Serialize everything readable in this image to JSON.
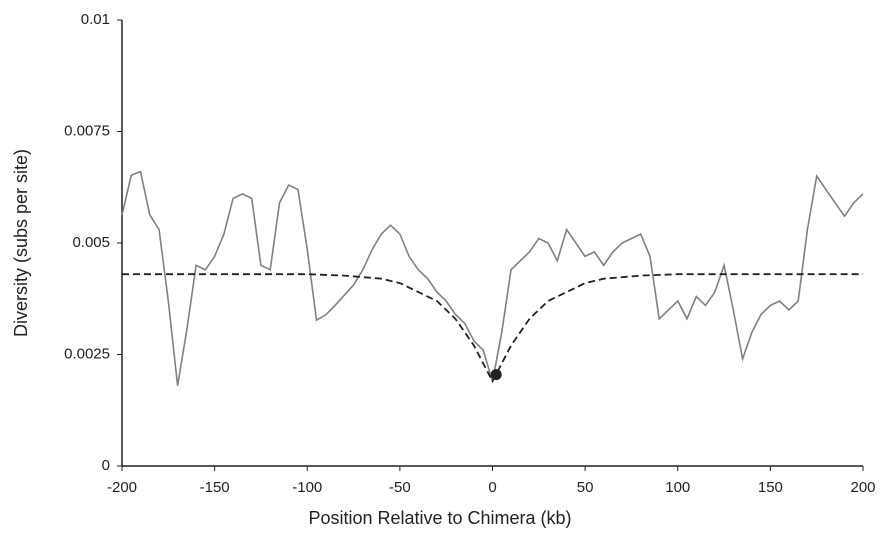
{
  "chart_data": {
    "type": "line",
    "xlabel": "Position Relative to Chimera (kb)",
    "ylabel": "Diversity (subs per site)",
    "xlim": [
      -200,
      200
    ],
    "xticks": [
      -200,
      -150,
      -100,
      -50,
      0,
      50,
      100,
      150,
      200
    ],
    "ylim": [
      0,
      0.01
    ],
    "yticks": [
      0,
      0.0025,
      0.005,
      0.0075,
      0.01
    ],
    "grid": false,
    "series": [
      {
        "color": "#808080",
        "dash": false,
        "x": [
          -200,
          -195,
          -190,
          -185,
          -180,
          -175,
          -170,
          -165,
          -160,
          -155,
          -150,
          -145,
          -140,
          -135,
          -130,
          -125,
          -120,
          -115,
          -110,
          -105,
          -100,
          -95,
          -90,
          -85,
          -80,
          -75,
          -70,
          -65,
          -60,
          -55,
          -50,
          -45,
          -40,
          -35,
          -30,
          -25,
          -20,
          -15,
          -10,
          -5,
          0,
          5,
          10,
          15,
          20,
          25,
          30,
          35,
          40,
          45,
          50,
          55,
          60,
          65,
          70,
          75,
          80,
          85,
          90,
          95,
          100,
          105,
          110,
          115,
          120,
          125,
          130,
          135,
          140,
          145,
          150,
          155,
          160,
          165,
          170,
          175,
          180,
          185,
          190,
          195,
          200
        ],
        "values": [
          0.00563,
          0.00652,
          0.0066,
          0.00563,
          0.0053,
          0.0037,
          0.0018,
          0.00305,
          0.0045,
          0.0044,
          0.0047,
          0.0052,
          0.006,
          0.0061,
          0.006,
          0.0045,
          0.0044,
          0.0059,
          0.0063,
          0.0062,
          0.00485,
          0.00327,
          0.00339,
          0.0036,
          0.00383,
          0.00406,
          0.0044,
          0.00485,
          0.0052,
          0.0054,
          0.0052,
          0.0047,
          0.0044,
          0.0042,
          0.0039,
          0.0037,
          0.0034,
          0.0032,
          0.0028,
          0.0026,
          0.0019,
          0.003,
          0.0044,
          0.0046,
          0.0048,
          0.0051,
          0.005,
          0.0046,
          0.0053,
          0.005,
          0.0047,
          0.0048,
          0.0045,
          0.0048,
          0.005,
          0.0051,
          0.0052,
          0.0047,
          0.0033,
          0.0035,
          0.0037,
          0.0033,
          0.0038,
          0.0036,
          0.0039,
          0.0045,
          0.0035,
          0.0024,
          0.003,
          0.0034,
          0.0036,
          0.0037,
          0.0035,
          0.0037,
          0.0053,
          0.0065,
          0.0062,
          0.0059,
          0.0056,
          0.0059,
          0.0061
        ]
      },
      {
        "color": "#222222",
        "dash": true,
        "x": [
          -200,
          -100,
          -80,
          -60,
          -50,
          -40,
          -30,
          -20,
          -10,
          -5,
          0,
          5,
          10,
          20,
          30,
          40,
          50,
          60,
          80,
          100,
          200
        ],
        "values": [
          0.0043,
          0.0043,
          0.00427,
          0.0042,
          0.0041,
          0.0039,
          0.0037,
          0.0033,
          0.0027,
          0.0023,
          0.0019,
          0.0023,
          0.0027,
          0.0033,
          0.0037,
          0.0039,
          0.0041,
          0.0042,
          0.00427,
          0.0043,
          0.0043
        ]
      }
    ],
    "points": [
      {
        "x": 2,
        "y": 0.00205,
        "color": "#222222"
      }
    ]
  }
}
